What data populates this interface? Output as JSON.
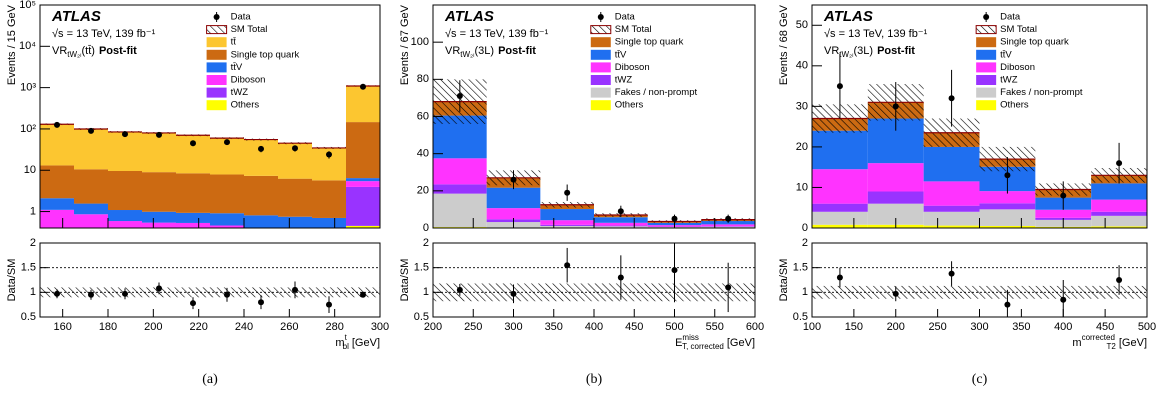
{
  "chart_data": [
    {
      "type": "stacked_histogram",
      "caption": "(a)",
      "atlas": "ATLAS",
      "energy": "√s = 13 TeV, 139 fb⁻¹",
      "region": "VR",
      "region_sub": "tW₂ₗ",
      "region_suffix": "(tt̄)",
      "status": "Post-fit",
      "ylabel": "Events / 15 GeV",
      "xlabel_main": "m",
      "xlabel_sub": "bl",
      "xlabel_sup": "t",
      "xlabel_unit": "[GeV]",
      "log_y": true,
      "xlim": [
        150,
        300
      ],
      "xticks": [
        160,
        180,
        200,
        220,
        240,
        260,
        280,
        300
      ],
      "ylim": [
        0.4,
        100000
      ],
      "yticks": [
        1,
        10,
        {
          "value": 100,
          "label": "10²"
        },
        {
          "value": 1000,
          "label": "10³"
        },
        {
          "value": 10000,
          "label": "10⁴"
        },
        {
          "value": 100000,
          "label": "10⁵"
        }
      ],
      "bins": [
        150,
        165,
        180,
        195,
        210,
        225,
        240,
        255,
        270,
        285,
        300
      ],
      "series": [
        {
          "name": "tt̄",
          "color": "#fcc630",
          "values": [
            117,
            89,
            75,
            71,
            62,
            52,
            48,
            39,
            29,
            950
          ]
        },
        {
          "name": "Single top quark",
          "color": "#cc6a12",
          "values": [
            11,
            9,
            8.5,
            8,
            7.5,
            7,
            6.5,
            5.5,
            5,
            140
          ]
        },
        {
          "name": "tt̄V",
          "color": "#1f6ff0",
          "values": [
            1.0,
            0.7,
            0.5,
            0.45,
            0.4,
            0.45,
            0.4,
            0.35,
            0.3,
            1.0
          ]
        },
        {
          "name": "Diboson",
          "color": "#ff33ff",
          "values": [
            0.9,
            0.7,
            0.45,
            0.4,
            0.4,
            0.35,
            0.3,
            0.3,
            0.3,
            1.5
          ]
        },
        {
          "name": "tWZ",
          "color": "#9933ff",
          "values": [
            0.15,
            0.12,
            0.1,
            0.1,
            0.1,
            0.08,
            0.08,
            0.07,
            0.07,
            3.5
          ]
        },
        {
          "name": "Others",
          "color": "#ffff00",
          "values": [
            0.05,
            0.04,
            0.04,
            0.04,
            0.03,
            0.03,
            0.03,
            0.03,
            0.03,
            0.45
          ]
        }
      ],
      "data": {
        "name": "Data",
        "values": [
          125,
          90,
          75,
          72,
          45,
          48,
          33,
          34,
          24,
          1050
        ],
        "errors": [
          11,
          9.5,
          8.7,
          8.5,
          6.7,
          6.9,
          5.7,
          5.8,
          4.9,
          32
        ]
      },
      "total": {
        "name": "SM Total",
        "uncertainty": [
          6,
          5,
          4,
          4,
          3.5,
          3,
          3,
          2.5,
          2,
          40
        ]
      },
      "ratio": {
        "ylabel": "Data/SM",
        "ylim": [
          0.5,
          2
        ],
        "yticks": [
          0.5,
          1,
          1.5,
          2
        ],
        "values": [
          0.97,
          0.95,
          0.97,
          1.08,
          0.78,
          0.95,
          0.8,
          1.05,
          0.75,
          0.95
        ],
        "errors": [
          0.09,
          0.1,
          0.11,
          0.12,
          0.12,
          0.14,
          0.14,
          0.17,
          0.17,
          0.04
        ],
        "uncertainty": 0.1
      }
    },
    {
      "type": "stacked_histogram",
      "caption": "(b)",
      "atlas": "ATLAS",
      "energy": "√s = 13 TeV, 139 fb⁻¹",
      "region": "VR",
      "region_sub": "tW₂ₗ",
      "region_suffix": "(3L)",
      "status": "Post-fit",
      "ylabel": "Events / 67 GeV",
      "xlabel_main": "E",
      "xlabel_sub": "T, corrected",
      "xlabel_sup": "miss",
      "xlabel_unit": "[GeV]",
      "log_y": false,
      "xlim": [
        200,
        600
      ],
      "xticks": [
        200,
        250,
        300,
        350,
        400,
        450,
        500,
        550,
        600
      ],
      "ylim": [
        0,
        120
      ],
      "yticks": [
        0,
        20,
        40,
        60,
        80,
        100
      ],
      "bins": [
        200,
        266.67,
        333.33,
        400,
        466.67,
        533.33,
        600
      ],
      "series": [
        {
          "name": "Single top quark",
          "color": "#cc6a12",
          "values": [
            7.5,
            5.3,
            2.3,
            1.2,
            0.75,
            0.75
          ]
        },
        {
          "name": "tt̄V",
          "color": "#1f6ff0",
          "values": [
            23,
            11,
            6,
            3,
            1.2,
            1.8
          ]
        },
        {
          "name": "Diboson",
          "color": "#ff33ff",
          "values": [
            14,
            6,
            2.5,
            1.5,
            0.8,
            1
          ]
        },
        {
          "name": "tWZ",
          "color": "#9933ff",
          "values": [
            5,
            1.5,
            0.6,
            0.4,
            0.2,
            0.3
          ]
        },
        {
          "name": "Fakes / non-prompt",
          "color": "#cccccc",
          "values": [
            18,
            3,
            1,
            0.8,
            0.5,
            0.6
          ]
        },
        {
          "name": "Others",
          "color": "#ffff00",
          "values": [
            0.5,
            0.2,
            0.1,
            0.1,
            0.05,
            0.05
          ]
        }
      ],
      "data": {
        "name": "Data",
        "values": [
          71,
          26,
          19,
          9,
          5,
          5
        ],
        "errors": [
          8.5,
          5.1,
          4.4,
          3,
          2.2,
          2.2
        ]
      },
      "total": {
        "name": "SM Total",
        "uncertainty": [
          12,
          4,
          1.5,
          1,
          0.7,
          0.8
        ]
      },
      "ratio": {
        "ylabel": "Data/SM",
        "ylim": [
          0.5,
          2
        ],
        "yticks": [
          0.5,
          1,
          1.5,
          2
        ],
        "values": [
          1.05,
          0.97,
          1.55,
          1.3,
          1.45,
          1.1
        ],
        "errors": [
          0.12,
          0.19,
          0.35,
          0.45,
          0.65,
          0.5
        ],
        "uncertainty": 0.18
      }
    },
    {
      "type": "stacked_histogram",
      "caption": "(c)",
      "atlas": "ATLAS",
      "energy": "√s = 13 TeV, 139 fb⁻¹",
      "region": "VR",
      "region_sub": "tW₂ₗ",
      "region_suffix": "(3L)",
      "status": "Post-fit",
      "ylabel": "Events / 68 GeV",
      "xlabel_main": "m",
      "xlabel_sub": "T2",
      "xlabel_sup": "corrected",
      "xlabel_unit": "[GeV]",
      "log_y": false,
      "xlim": [
        100,
        500
      ],
      "xticks": [
        100,
        150,
        200,
        250,
        300,
        350,
        400,
        450,
        500
      ],
      "ylim": [
        0,
        55
      ],
      "yticks": [
        0,
        10,
        20,
        30,
        40,
        50
      ],
      "bins": [
        100,
        166.67,
        233.33,
        300,
        366.67,
        433.33,
        500
      ],
      "series": [
        {
          "name": "Single top quark",
          "color": "#cc6a12",
          "values": [
            3,
            4,
            3.5,
            1.9,
            2,
            2
          ]
        },
        {
          "name": "tt̄V",
          "color": "#1f6ff0",
          "values": [
            9.5,
            11,
            8.5,
            6,
            3,
            4
          ]
        },
        {
          "name": "Diboson",
          "color": "#ff33ff",
          "values": [
            8.5,
            7,
            6,
            3,
            2,
            3
          ]
        },
        {
          "name": "tWZ",
          "color": "#9933ff",
          "values": [
            2,
            3,
            1.5,
            1.5,
            0.5,
            1
          ]
        },
        {
          "name": "Fakes / non-prompt",
          "color": "#cccccc",
          "values": [
            3.2,
            5.2,
            3.4,
            4.1,
            1.7,
            2.6
          ]
        },
        {
          "name": "Others",
          "color": "#ffff00",
          "values": [
            0.8,
            0.8,
            0.6,
            0.5,
            0.3,
            0.4
          ]
        }
      ],
      "data": {
        "name": "Data",
        "values": [
          35,
          30,
          32,
          13,
          8,
          16
        ],
        "errors": [
          8,
          6,
          7,
          4.5,
          3.5,
          5
        ]
      },
      "total": {
        "name": "SM Total",
        "uncertainty": [
          3.5,
          4.5,
          3.5,
          3,
          1.5,
          1.8
        ]
      },
      "ratio": {
        "ylabel": "Data/SM",
        "ylim": [
          0.5,
          2
        ],
        "yticks": [
          0.5,
          1,
          1.5,
          2
        ],
        "values": [
          1.3,
          0.97,
          1.38,
          0.75,
          0.85,
          1.25
        ],
        "errors": [
          0.2,
          0.15,
          0.25,
          0.3,
          0.4,
          0.3
        ],
        "uncertainty": 0.13
      }
    }
  ]
}
